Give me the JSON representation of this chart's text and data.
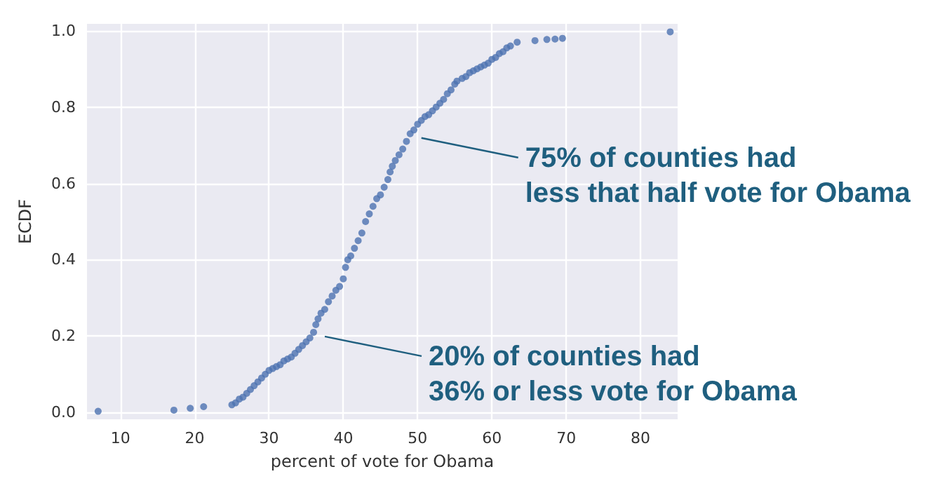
{
  "chart_data": {
    "type": "scatter",
    "xlabel": "percent of vote for Obama",
    "ylabel": "ECDF",
    "series": [
      {
        "color": "#4c72b0",
        "x": [
          7,
          17.2,
          19.4,
          21.2,
          25,
          25.5,
          26,
          26.5,
          27,
          27.5,
          28,
          28.5,
          29,
          29.5,
          30,
          30.5,
          31,
          31.5,
          32,
          32.5,
          33,
          33.5,
          34,
          34.5,
          35,
          35.5,
          36,
          36.3,
          36.6,
          37,
          37.5,
          38,
          38.5,
          39,
          39.5,
          40,
          40.3,
          40.6,
          41,
          41.5,
          42,
          42.5,
          43,
          43.5,
          44,
          44.5,
          45,
          45.5,
          46,
          46.3,
          46.6,
          47,
          47.5,
          48,
          48.5,
          49,
          49.5,
          50,
          50.5,
          51,
          51.5,
          52,
          52.5,
          53,
          53.5,
          54,
          54.5,
          55,
          55.3,
          56,
          56.5,
          57,
          57.5,
          58,
          58.5,
          59,
          59.5,
          60,
          60.5,
          61,
          61.5,
          62,
          62.5,
          63.4,
          65.8,
          67.4,
          68.5,
          69.5,
          84
        ],
        "values": [
          0.003,
          0.006,
          0.011,
          0.015,
          0.02,
          0.025,
          0.035,
          0.04,
          0.05,
          0.06,
          0.07,
          0.08,
          0.09,
          0.1,
          0.11,
          0.115,
          0.12,
          0.125,
          0.135,
          0.14,
          0.145,
          0.155,
          0.165,
          0.175,
          0.185,
          0.195,
          0.21,
          0.23,
          0.245,
          0.26,
          0.27,
          0.29,
          0.305,
          0.32,
          0.33,
          0.35,
          0.38,
          0.4,
          0.41,
          0.43,
          0.45,
          0.47,
          0.5,
          0.52,
          0.54,
          0.56,
          0.57,
          0.59,
          0.61,
          0.63,
          0.645,
          0.66,
          0.675,
          0.69,
          0.71,
          0.73,
          0.74,
          0.755,
          0.765,
          0.775,
          0.78,
          0.79,
          0.8,
          0.81,
          0.82,
          0.835,
          0.845,
          0.86,
          0.868,
          0.875,
          0.88,
          0.89,
          0.895,
          0.9,
          0.905,
          0.91,
          0.915,
          0.925,
          0.93,
          0.94,
          0.945,
          0.955,
          0.96,
          0.97,
          0.974,
          0.977,
          0.978,
          0.98,
          0.997
        ]
      }
    ],
    "xlim": [
      5.5,
      85
    ],
    "xticks": [
      10,
      20,
      30,
      40,
      50,
      60,
      70,
      80
    ],
    "ylim": [
      -0.018,
      1.018
    ],
    "yticks": [
      {
        "value": 0,
        "label": "0.0"
      },
      {
        "value": 0.2,
        "label": "0.2"
      },
      {
        "value": 0.4,
        "label": "0.4"
      },
      {
        "value": 0.6,
        "label": "0.6"
      },
      {
        "value": 0.8,
        "label": "0.8"
      },
      {
        "value": 1,
        "label": "1.0"
      }
    ],
    "grid": true,
    "marker": "circle",
    "annotations": [
      {
        "text": "75% of counties had\nless that half vote for Obama",
        "x": 49,
        "y": 0.73
      },
      {
        "text": "20% of counties had\n36% or less vote for Obama",
        "x": 36,
        "y": 0.21
      }
    ]
  }
}
